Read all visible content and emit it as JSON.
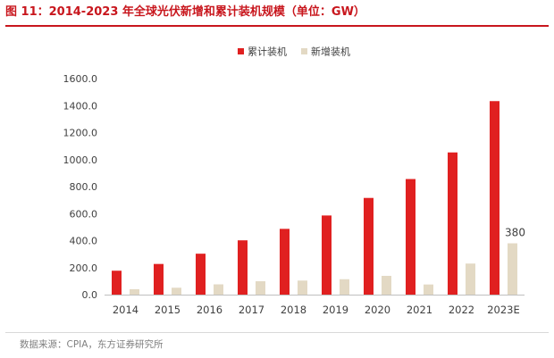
{
  "header": {
    "title": "图 11：2014-2023 年全球光伏新增和累计装机规模（单位：GW）"
  },
  "footer": {
    "source": "数据来源：CPIA，东方证券研究所"
  },
  "colors": {
    "title": "#c8161d",
    "series_cumulative": "#e02020",
    "series_new": "#e3d9c4"
  },
  "chart_data": {
    "type": "bar",
    "categories": [
      "2014",
      "2015",
      "2016",
      "2017",
      "2018",
      "2019",
      "2020",
      "2021",
      "2022",
      "2023E"
    ],
    "series": [
      {
        "name": "累计装机",
        "values": [
          177,
          227,
          303,
          402,
          487,
          586,
          716,
          856,
          1053,
          1433
        ]
      },
      {
        "name": "新增装机",
        "values": [
          40,
          51,
          76,
          99,
          104,
          114,
          139,
          75,
          230,
          380
        ]
      }
    ],
    "yticks": [
      "0.0",
      "200.0",
      "400.0",
      "600.0",
      "800.0",
      "1000.0",
      "1200.0",
      "1400.0",
      "1600.0"
    ],
    "ylim": [
      0,
      1600
    ],
    "data_labels": [
      {
        "series": 1,
        "index": 9,
        "text": "380"
      }
    ],
    "legend": "top-center",
    "grid": false
  }
}
